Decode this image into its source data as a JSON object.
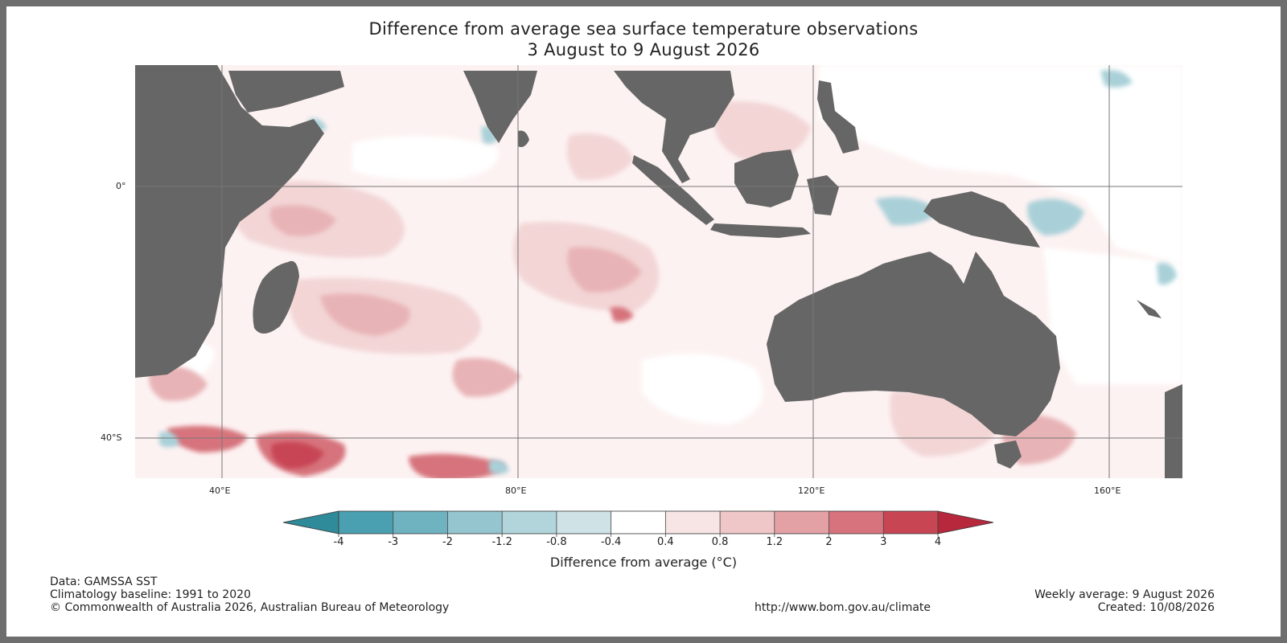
{
  "title": "Difference from average sea surface temperature observations",
  "subtitle": "3 August to 9 August 2026",
  "map": {
    "region": "Indian Ocean and Australia",
    "land_color": "#666666",
    "grid_color": "#777777",
    "latitude_labels": [
      "0°",
      "40°S"
    ],
    "longitude_labels": [
      "40°E",
      "80°E",
      "120°E",
      "160°E"
    ]
  },
  "colorbar": {
    "label": "Difference from average (°C)",
    "ticks": [
      "-4",
      "-3",
      "-2",
      "-1.2",
      "-0.8",
      "-0.4",
      "0.4",
      "0.8",
      "1.2",
      "2",
      "3",
      "4"
    ],
    "colors": [
      "#4a9fb0",
      "#6fb2c0",
      "#95c5cf",
      "#b2d4db",
      "#cfe3e7",
      "#ffffff",
      "#f7e5e5",
      "#efc7c8",
      "#e3a1a6",
      "#d6737c",
      "#c84554"
    ],
    "under_color": "#2f8a99",
    "over_color": "#b8283c"
  },
  "footer": {
    "data_source": "Data: GAMSSA SST",
    "baseline": "Climatology baseline: 1991 to 2020",
    "copyright": "© Commonwealth of Australia 2026, Australian Bureau of Meteorology",
    "url": "http://www.bom.gov.au/climate",
    "weekly": "Weekly average: 9 August 2026",
    "created": "Created: 10/08/2026"
  }
}
